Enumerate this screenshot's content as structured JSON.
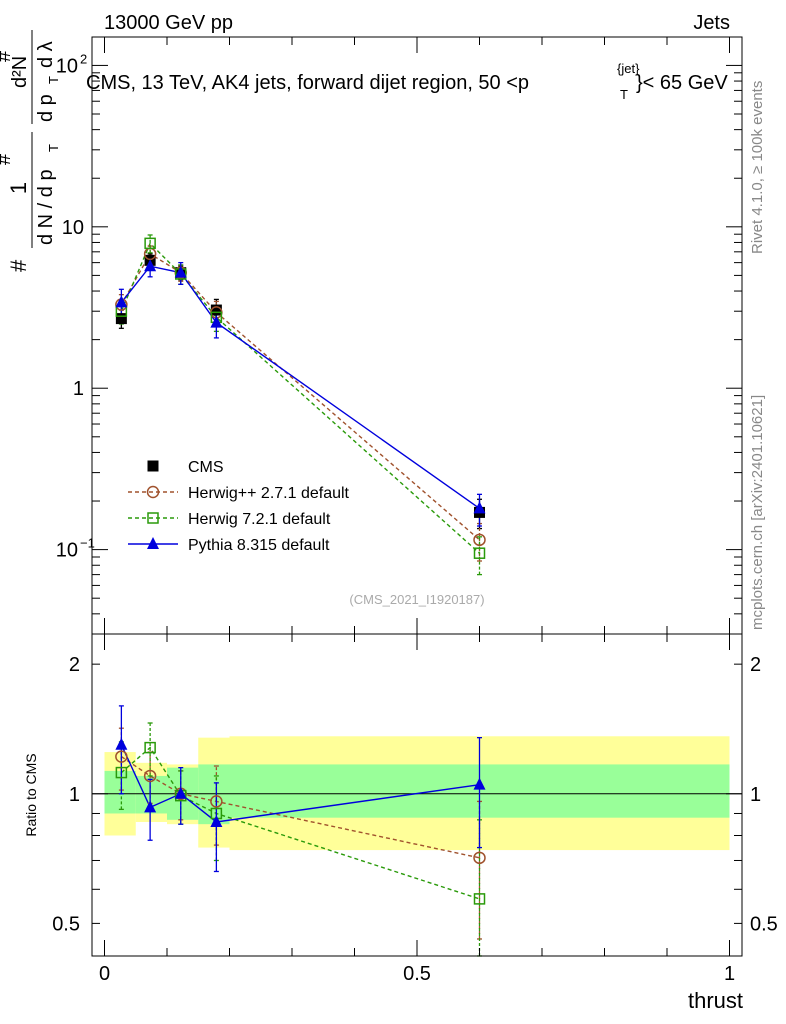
{
  "header": {
    "left": "13000 GeV pp",
    "right": "Jets",
    "title_main": "CMS, 13 TeV, AK4 jets, forward dijet region, 50 <",
    "title_p": "p",
    "title_sup": "{jet}",
    "title_sub": "T",
    "title_tail": "}< 65 GeV",
    "side_right_top": "Rivet 4.1.0, ≥ 100k events",
    "side_right_bottom": "mcplots.cern.ch [arXiv:2401.10621]",
    "watermark": "(CMS_2021_I1920187)"
  },
  "ylabel_main": {
    "hash1": "#",
    "one": "1",
    "dN": "d N / d p",
    "t1": "T",
    "hash2": "#",
    "d2N": "d²N",
    "dpT": "d p",
    "t2": "T",
    "dlambda": "d λ",
    "hash3": "#"
  },
  "colors": {
    "cms": "#000000",
    "herwigpp": "#a0522d",
    "herwig7": "#2a9a0a",
    "pythia": "#0000dd",
    "band_inner": "#99ff99",
    "band_outer": "#ffff99"
  },
  "chart_data": [
    {
      "type": "scatter",
      "panel": "main",
      "xlabel": "thrust",
      "ylabel": "1/dN/dpT · d²N/dpT dλ",
      "yscale": "log",
      "xlim": [
        -0.02,
        1.02
      ],
      "ylim": [
        0.03,
        150
      ],
      "yticks": [
        {
          "value": 0.1,
          "base": "10",
          "exp": "−1"
        },
        {
          "value": 1,
          "base": "1",
          "exp": ""
        },
        {
          "value": 10,
          "base": "10",
          "exp": ""
        },
        {
          "value": 100,
          "base": "10",
          "exp": "2"
        }
      ],
      "xticks": [
        {
          "value": 0,
          "label": "0"
        },
        {
          "value": 0.5,
          "label": "0.5"
        },
        {
          "value": 1,
          "label": "1"
        }
      ],
      "bins": [
        [
          0.0,
          0.05
        ],
        [
          0.05,
          0.1
        ],
        [
          0.1,
          0.15
        ],
        [
          0.15,
          0.2
        ],
        [
          0.2,
          1.0
        ]
      ],
      "x": [
        0.027,
        0.073,
        0.122,
        0.179,
        0.6
      ],
      "legend_position": "bottom-left",
      "series": [
        {
          "name": "CMS",
          "key": "cms",
          "marker": "square-filled",
          "line": "none",
          "values": [
            2.7,
            6.2,
            5.2,
            3.05,
            0.17
          ],
          "errors": [
            0.35,
            0.6,
            0.5,
            0.5,
            0.035
          ]
        },
        {
          "name": "Herwig++ 2.7.1 default",
          "key": "herwigpp",
          "marker": "circle-open",
          "line": "dashed",
          "values": [
            3.3,
            6.8,
            5.2,
            2.95,
            0.115
          ],
          "errors": [
            0.5,
            0.8,
            0.6,
            0.5,
            0.03
          ]
        },
        {
          "name": "Herwig 7.2.1 default",
          "key": "herwig7",
          "marker": "square-open",
          "line": "dashed",
          "values": [
            3.0,
            7.9,
            5.1,
            2.75,
            0.095
          ],
          "errors": [
            0.5,
            1.0,
            0.7,
            0.5,
            0.025
          ]
        },
        {
          "name": "Pythia 8.315 default",
          "key": "pythia",
          "marker": "triangle-filled",
          "line": "solid",
          "values": [
            3.4,
            5.7,
            5.2,
            2.55,
            0.18
          ],
          "errors": [
            0.7,
            0.8,
            0.8,
            0.5,
            0.04
          ]
        }
      ]
    },
    {
      "type": "scatter",
      "panel": "ratio",
      "xlabel": "thrust",
      "ylabel": "Ratio to CMS",
      "yscale": "log",
      "xlim": [
        -0.02,
        1.02
      ],
      "ylim": [
        0.42,
        2.35
      ],
      "yticks": [
        {
          "value": 0.5,
          "label": "0.5"
        },
        {
          "value": 1,
          "label": "1"
        },
        {
          "value": 2,
          "label": "2"
        }
      ],
      "xticks": [
        {
          "value": 0,
          "label": "0"
        },
        {
          "value": 0.5,
          "label": "0.5"
        },
        {
          "value": 1,
          "label": "1"
        }
      ],
      "bands": [
        {
          "x0": 0.0,
          "x1": 0.05,
          "inner": [
            0.9,
            1.13
          ],
          "outer": [
            0.8,
            1.25
          ]
        },
        {
          "x0": 0.05,
          "x1": 0.1,
          "inner": [
            0.9,
            1.1
          ],
          "outer": [
            0.86,
            1.18
          ]
        },
        {
          "x0": 0.1,
          "x1": 0.15,
          "inner": [
            0.87,
            1.15
          ],
          "outer": [
            0.85,
            1.17
          ]
        },
        {
          "x0": 0.15,
          "x1": 0.2,
          "inner": [
            0.85,
            1.17
          ],
          "outer": [
            0.75,
            1.35
          ]
        },
        {
          "x0": 0.2,
          "x1": 1.0,
          "inner": [
            0.88,
            1.17
          ],
          "outer": [
            0.74,
            1.36
          ]
        }
      ],
      "x": [
        0.027,
        0.073,
        0.122,
        0.179,
        0.6
      ],
      "series": [
        {
          "name": "Herwig++ 2.7.1 default",
          "key": "herwigpp",
          "marker": "circle-open",
          "line": "dashed",
          "values": [
            1.22,
            1.1,
            1.0,
            0.96,
            0.71
          ],
          "errors": [
            0.2,
            0.15,
            0.13,
            0.2,
            0.25
          ]
        },
        {
          "name": "Herwig 7.2.1 default",
          "key": "herwig7",
          "marker": "square-open",
          "line": "dashed",
          "values": [
            1.12,
            1.28,
            0.99,
            0.9,
            0.57
          ],
          "errors": [
            0.2,
            0.18,
            0.14,
            0.2,
            0.3
          ]
        },
        {
          "name": "Pythia 8.315 default",
          "key": "pythia",
          "marker": "triangle-filled",
          "line": "solid",
          "values": [
            1.3,
            0.93,
            1.0,
            0.86,
            1.05
          ],
          "errors": [
            0.3,
            0.15,
            0.15,
            0.2,
            0.3
          ]
        }
      ]
    }
  ]
}
